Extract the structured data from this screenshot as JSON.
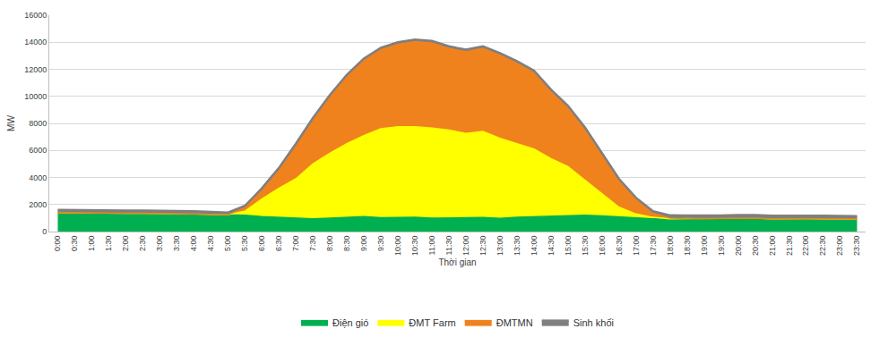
{
  "chart_data": {
    "type": "area",
    "stacked": true,
    "grid": true,
    "legend": "bottom",
    "x_label": "Thời gian",
    "y_label": "MW",
    "categories": [
      "0:00",
      "0:30",
      "1:00",
      "1:30",
      "2:00",
      "2:30",
      "3:00",
      "3:30",
      "4:00",
      "4:30",
      "5:00",
      "5:30",
      "6:00",
      "6:30",
      "7:00",
      "7:30",
      "8:00",
      "8:30",
      "9:00",
      "9:30",
      "10:00",
      "10:30",
      "11:00",
      "11:30",
      "12:00",
      "12:30",
      "13:00",
      "13:30",
      "14:00",
      "14:30",
      "15:00",
      "15:30",
      "16:00",
      "16:30",
      "17:00",
      "17:30",
      "18:00",
      "18:30",
      "19:00",
      "19:30",
      "20:00",
      "20:30",
      "21:00",
      "21:30",
      "22:00",
      "22:30",
      "23:00",
      "23:30"
    ],
    "ylim": [
      0,
      16000
    ],
    "yticks": [
      0,
      2000,
      4000,
      6000,
      8000,
      10000,
      12000,
      14000,
      16000
    ],
    "series": [
      {
        "name": "Điện gió",
        "color": "#00b050",
        "values": [
          1400,
          1380,
          1350,
          1330,
          1360,
          1350,
          1340,
          1350,
          1300,
          1280,
          1250,
          1200,
          1100,
          1050,
          980,
          950,
          1000,
          1050,
          1100,
          1020,
          1030,
          1050,
          1000,
          1030,
          1020,
          1040,
          980,
          1050,
          1080,
          1150,
          1160,
          1200,
          1150,
          1080,
          1000,
          950,
          950,
          960,
          960,
          970,
          1000,
          1000,
          950,
          970,
          960,
          950,
          930,
          920
        ]
      },
      {
        "name": "ĐMT Farm",
        "color": "#ffff00",
        "values": [
          0,
          0,
          0,
          0,
          0,
          0,
          0,
          0,
          0,
          0,
          0,
          300,
          1300,
          2150,
          2920,
          4050,
          4800,
          5450,
          6000,
          6580,
          6720,
          6700,
          6650,
          6470,
          6230,
          6360,
          5920,
          5450,
          5020,
          4250,
          3640,
          2600,
          1650,
          720,
          300,
          100,
          0,
          0,
          0,
          0,
          0,
          0,
          0,
          0,
          0,
          0,
          0,
          0
        ]
      },
      {
        "name": "ĐMTMN",
        "color": "#f0821e",
        "values": [
          0,
          0,
          0,
          0,
          0,
          0,
          0,
          0,
          0,
          0,
          0,
          250,
          650,
          1350,
          2450,
          3250,
          4150,
          4950,
          5550,
          5850,
          6100,
          6300,
          6300,
          6050,
          6050,
          6150,
          6150,
          5950,
          5650,
          4950,
          4350,
          3750,
          2850,
          1950,
          1050,
          300,
          50,
          0,
          0,
          0,
          0,
          0,
          0,
          0,
          0,
          0,
          0,
          0
        ]
      },
      {
        "name": "Sinh khối",
        "color": "#7f7f7f",
        "values": [
          200,
          200,
          200,
          200,
          200,
          200,
          200,
          200,
          200,
          180,
          150,
          150,
          150,
          150,
          150,
          150,
          150,
          150,
          150,
          150,
          150,
          150,
          150,
          150,
          150,
          150,
          150,
          150,
          150,
          150,
          150,
          150,
          150,
          150,
          150,
          150,
          200,
          220,
          220,
          220,
          230,
          230,
          220,
          220,
          220,
          220,
          220,
          220
        ]
      }
    ]
  }
}
